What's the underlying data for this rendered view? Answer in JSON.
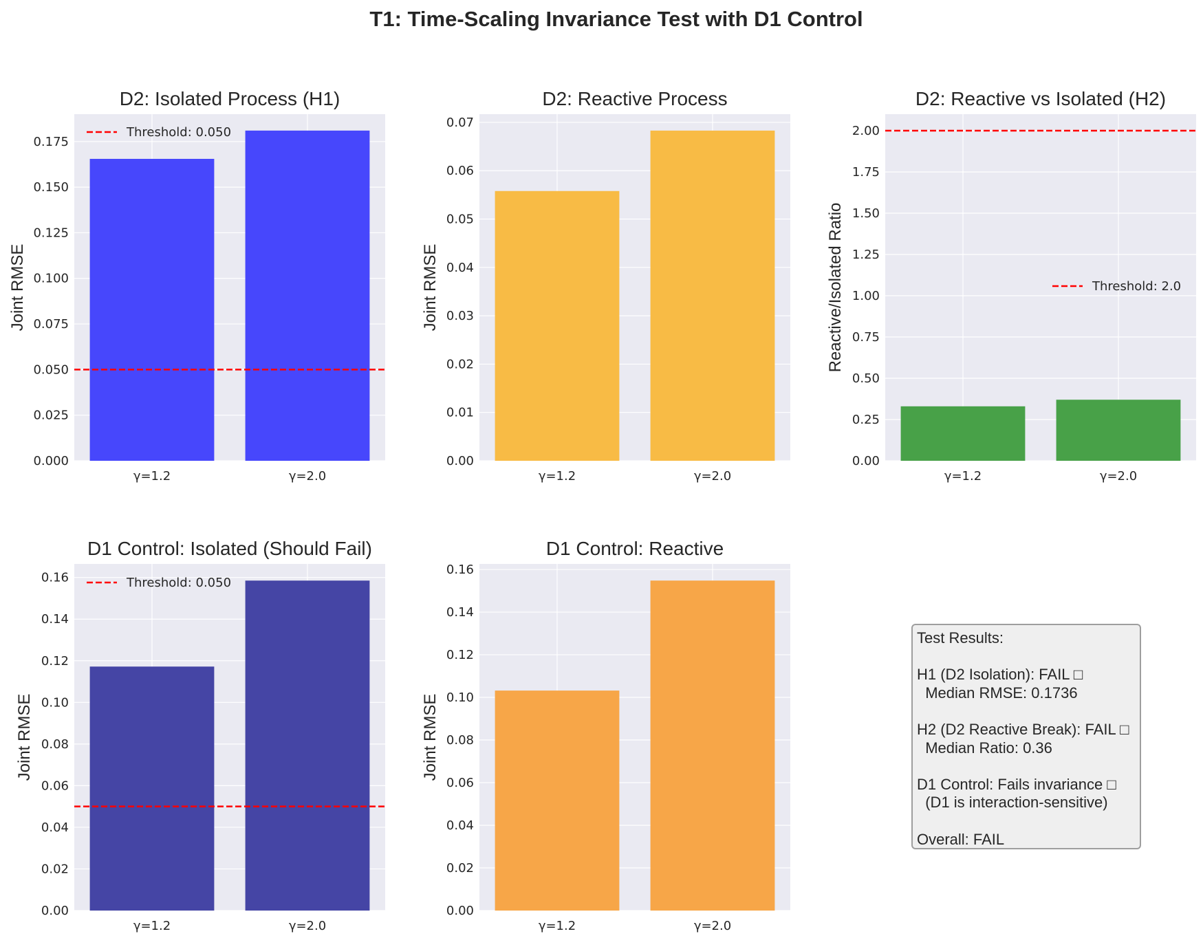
{
  "figure": {
    "title": "T1: Time-Scaling Invariance Test with D1 Control"
  },
  "colors": {
    "plot_bg": "#eaeaf2",
    "grid": "#ffffff",
    "threshold": "#ff0000",
    "isolated_d2": "#4747fc",
    "reactive_d2": "#f8bb45",
    "ratio": "#48a148",
    "isolated_d1": "#4545a5",
    "reactive_d1": "#f7a648"
  },
  "chart_data": [
    {
      "type": "bar",
      "title": "D2: Isolated Process (H1)",
      "ylabel": "Joint RMSE",
      "categories": [
        "γ=1.2",
        "γ=2.0"
      ],
      "values": [
        0.1655,
        0.181
      ],
      "ylim": [
        0,
        0.19
      ],
      "yticks": [
        0.0,
        0.025,
        0.05,
        0.075,
        0.1,
        0.125,
        0.15,
        0.175
      ],
      "ytick_labels": [
        "0.000",
        "0.025",
        "0.050",
        "0.075",
        "0.100",
        "0.125",
        "0.150",
        "0.175"
      ],
      "color": "#4747fc",
      "threshold": 0.05,
      "threshold_label": "Threshold: 0.050",
      "legend": "upper-left",
      "grid": true
    },
    {
      "type": "bar",
      "title": "D2: Reactive Process",
      "ylabel": "Joint RMSE",
      "categories": [
        "γ=1.2",
        "γ=2.0"
      ],
      "values": [
        0.0558,
        0.0683
      ],
      "ylim": [
        0,
        0.0717
      ],
      "yticks": [
        0.0,
        0.01,
        0.02,
        0.03,
        0.04,
        0.05,
        0.06,
        0.07
      ],
      "ytick_labels": [
        "0.00",
        "0.01",
        "0.02",
        "0.03",
        "0.04",
        "0.05",
        "0.06",
        "0.07"
      ],
      "color": "#f8bb45",
      "grid": true
    },
    {
      "type": "bar",
      "title": "D2: Reactive vs Isolated (H2)",
      "ylabel": "Reactive/Isolated Ratio",
      "categories": [
        "γ=1.2",
        "γ=2.0"
      ],
      "values": [
        0.33,
        0.37
      ],
      "ylim": [
        0,
        2.1
      ],
      "yticks": [
        0.0,
        0.25,
        0.5,
        0.75,
        1.0,
        1.25,
        1.5,
        1.75,
        2.0
      ],
      "ytick_labels": [
        "0.00",
        "0.25",
        "0.50",
        "0.75",
        "1.00",
        "1.25",
        "1.50",
        "1.75",
        "2.00"
      ],
      "color": "#48a148",
      "threshold": 2.0,
      "threshold_label": "Threshold: 2.0",
      "legend": "center-right",
      "grid": true
    },
    {
      "type": "bar",
      "title": "D1 Control: Isolated (Should Fail)",
      "ylabel": "Joint RMSE",
      "categories": [
        "γ=1.2",
        "γ=2.0"
      ],
      "values": [
        0.1172,
        0.1585
      ],
      "ylim": [
        0,
        0.1665
      ],
      "yticks": [
        0.0,
        0.02,
        0.04,
        0.06,
        0.08,
        0.1,
        0.12,
        0.14,
        0.16
      ],
      "ytick_labels": [
        "0.00",
        "0.02",
        "0.04",
        "0.06",
        "0.08",
        "0.10",
        "0.12",
        "0.14",
        "0.16"
      ],
      "color": "#4545a5",
      "threshold": 0.05,
      "threshold_label": "Threshold: 0.050",
      "legend": "upper-left",
      "grid": true
    },
    {
      "type": "bar",
      "title": "D1 Control: Reactive",
      "ylabel": "Joint RMSE",
      "categories": [
        "γ=1.2",
        "γ=2.0"
      ],
      "values": [
        0.1032,
        0.1548
      ],
      "ylim": [
        0,
        0.1626
      ],
      "yticks": [
        0.0,
        0.02,
        0.04,
        0.06,
        0.08,
        0.1,
        0.12,
        0.14,
        0.16
      ],
      "ytick_labels": [
        "0.00",
        "0.02",
        "0.04",
        "0.06",
        "0.08",
        "0.10",
        "0.12",
        "0.14",
        "0.16"
      ],
      "color": "#f7a648",
      "grid": true
    }
  ],
  "results": {
    "text": "Test Results:\n\nH1 (D2 Isolation): FAIL □\n  Median RMSE: 0.1736\n\nH2 (D2 Reactive Break): FAIL □\n  Median Ratio: 0.36\n\nD1 Control: Fails invariance □\n  (D1 is interaction-sensitive)\n\nOverall: FAIL"
  }
}
